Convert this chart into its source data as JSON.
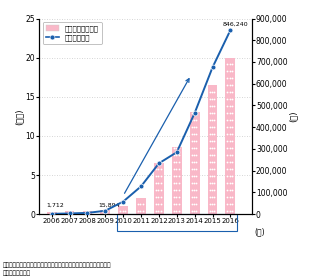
{
  "years": [
    2006,
    2007,
    2008,
    2009,
    2010,
    2011,
    2012,
    2013,
    2014,
    2015,
    2016
  ],
  "vehicles_thousand": [
    0.28,
    0.35,
    0.45,
    0.6,
    1.0,
    2.1,
    6.6,
    8.6,
    13.0,
    16.5,
    20.0
  ],
  "members": [
    1712,
    3500,
    6000,
    15894,
    58000,
    128000,
    234000,
    285000,
    465000,
    675000,
    846240
  ],
  "bar_color": "#f9b8c8",
  "line_color": "#1a5fad",
  "left_ylabel": "(千台)",
  "right_ylabel": "(人)",
  "ylim_left": [
    0,
    25
  ],
  "ylim_right": [
    0,
    900000
  ],
  "yticks_left": [
    0,
    5,
    10,
    15,
    20,
    25
  ],
  "yticks_right": [
    0,
    100000,
    200000,
    300000,
    400000,
    500000,
    600000,
    700000,
    800000,
    900000
  ],
  "ann1_text": "1,712",
  "ann2_text": "15,894",
  "ann3_text": "846,240",
  "legend_bar_label": "車両台数（千台）",
  "legend_line_label": "会員数（人）",
  "source_text": "資料）（公財）交通エコロジー・モビリティ財団ウェブサイトより国\n　　土交通省作成",
  "xlabel_year": "(年)",
  "background_color": "#ffffff",
  "grid_color": "#c8c8c8",
  "box_color": "#1a5fad"
}
